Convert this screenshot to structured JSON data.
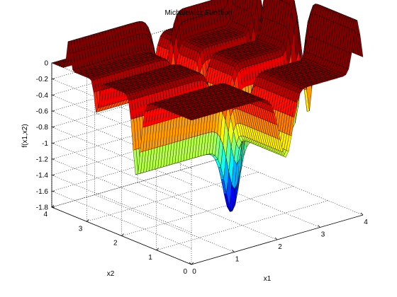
{
  "chart_data": {
    "type": "surface",
    "function": "michalewicz",
    "m": 10,
    "title": "Michalewicz Function",
    "xlabel": "x1",
    "ylabel": "x2",
    "zlabel": "f(x1,x2)",
    "xlim": [
      0,
      4
    ],
    "ylim": [
      0,
      4
    ],
    "zlim": [
      -1.8,
      0
    ],
    "xticks": [
      "0",
      "1",
      "2",
      "3",
      "4"
    ],
    "yticks": [
      "0",
      "1",
      "2",
      "3",
      "4"
    ],
    "zticks": [
      "0",
      "-0.2",
      "-0.4",
      "-0.6",
      "-0.8",
      "-1",
      "-1.2",
      "-1.4",
      "-1.6",
      "-1.8"
    ],
    "grid": true,
    "colormap": "jet",
    "global_minimum": {
      "x1": 2.2,
      "x2": 1.57,
      "z": -1.8
    }
  }
}
